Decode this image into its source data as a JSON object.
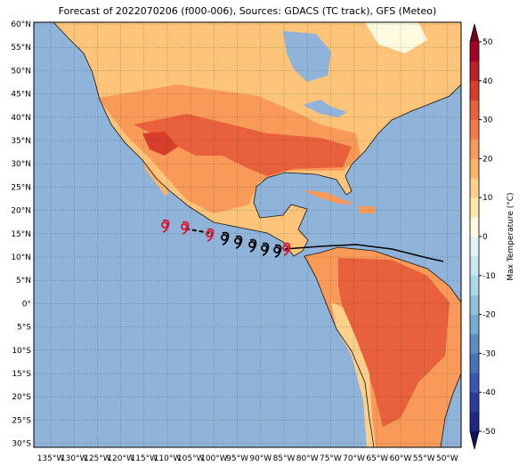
{
  "title": "Forecast of 2022070206 (f000-006), Sources: GDACS (TC track), GFS (Meteo)",
  "map": {
    "lat_labels": [
      "60°N",
      "55°N",
      "50°N",
      "45°N",
      "40°N",
      "35°N",
      "30°N",
      "25°N",
      "20°N",
      "15°N",
      "10°N",
      "5°N",
      "0°",
      "5°S",
      "10°S",
      "15°S",
      "20°S",
      "25°S",
      "30°S"
    ],
    "lon_labels": [
      "135°W",
      "130°W",
      "125°W",
      "120°W",
      "115°W",
      "110°W",
      "105°W",
      "100°W",
      "95°W",
      "90°W",
      "85°W",
      "80°W",
      "75°W",
      "70°W",
      "65°W",
      "60°W",
      "55°W",
      "50°W"
    ]
  },
  "colorbar": {
    "label": "Max Temperature (°C)",
    "ticks": [
      50,
      40,
      30,
      20,
      10,
      0,
      -10,
      -20,
      -30,
      -40,
      -50
    ],
    "lim": [
      -50,
      50
    ],
    "colors": [
      "#1b2a80",
      "#2a3c9a",
      "#3a5ab0",
      "#4575b4",
      "#5b8fc3",
      "#74add1",
      "#92c1dc",
      "#abd9e9",
      "#c6e6f0",
      "#e0f3f8",
      "#fffbe0",
      "#fee8a8",
      "#fed08a",
      "#fdb466",
      "#f99a58",
      "#f47a48",
      "#e8603c",
      "#d73f2b",
      "#bb2026",
      "#a50026"
    ],
    "under": "#0d1260",
    "over": "#7a0020"
  }
}
